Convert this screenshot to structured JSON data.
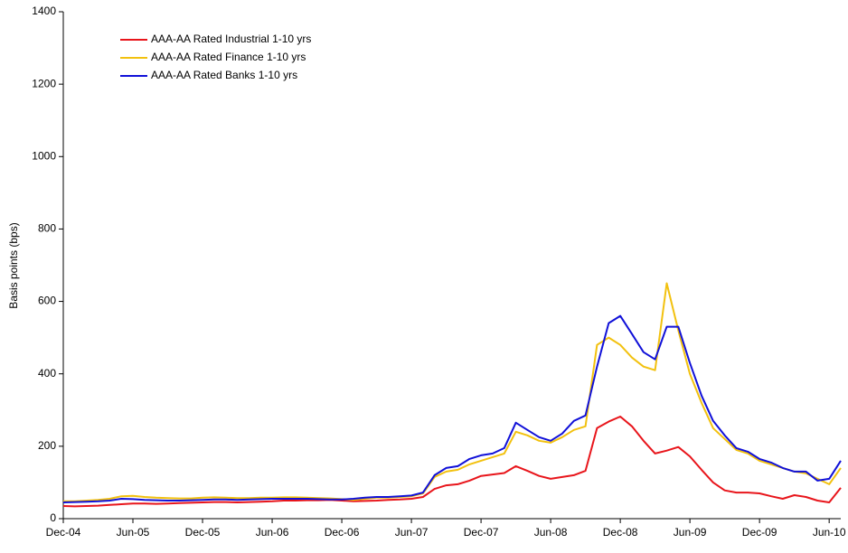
{
  "chart_data": {
    "type": "line",
    "y_label": "Basis points (bps)",
    "categories": [
      "Dec-04",
      null,
      null,
      null,
      null,
      null,
      "Jun-05",
      null,
      null,
      null,
      null,
      null,
      "Dec-05",
      null,
      null,
      null,
      null,
      null,
      "Jun-06",
      null,
      null,
      null,
      null,
      null,
      "Dec-06",
      null,
      null,
      null,
      null,
      null,
      "Jun-07",
      null,
      null,
      null,
      null,
      null,
      "Dec-07",
      null,
      null,
      null,
      null,
      null,
      "Jun-08",
      null,
      null,
      null,
      null,
      null,
      "Dec-08",
      null,
      null,
      null,
      null,
      null,
      "Jun-09",
      null,
      null,
      null,
      null,
      null,
      "Dec-09",
      null,
      null,
      null,
      null,
      null,
      "Jun-10",
      null
    ],
    "series": [
      {
        "name": "AAA-AA Rated Industrial 1-10 yrs",
        "color": "#e8151b",
        "values": [
          35,
          34,
          35,
          36,
          38,
          40,
          42,
          42,
          41,
          42,
          43,
          44,
          45,
          46,
          46,
          45,
          46,
          47,
          48,
          50,
          50,
          51,
          51,
          52,
          50,
          48,
          49,
          50,
          52,
          53,
          55,
          60,
          82,
          92,
          95,
          105,
          118,
          122,
          126,
          145,
          132,
          118,
          110,
          115,
          120,
          132,
          250,
          268,
          282,
          255,
          215,
          180,
          188,
          198,
          172,
          135,
          100,
          78,
          72,
          72,
          70,
          62,
          55,
          65,
          60,
          50,
          45,
          85
        ]
      },
      {
        "name": "AAA-AA Rated Finance 1-10 yrs",
        "color": "#f2c10f",
        "values": [
          48,
          48,
          50,
          52,
          55,
          62,
          63,
          60,
          58,
          57,
          56,
          56,
          58,
          59,
          58,
          57,
          57,
          58,
          58,
          59,
          59,
          58,
          57,
          56,
          54,
          52,
          55,
          58,
          58,
          60,
          62,
          70,
          115,
          130,
          135,
          150,
          160,
          170,
          180,
          240,
          230,
          215,
          210,
          225,
          245,
          255,
          480,
          500,
          480,
          445,
          420,
          410,
          650,
          520,
          400,
          320,
          250,
          220,
          190,
          180,
          160,
          150,
          140,
          130,
          125,
          110,
          95,
          140
        ]
      },
      {
        "name": "AAA-AA Rated Banks 1-10 yrs",
        "color": "#1010d8",
        "values": [
          45,
          46,
          47,
          48,
          50,
          55,
          54,
          52,
          51,
          50,
          50,
          51,
          52,
          53,
          53,
          52,
          53,
          54,
          55,
          55,
          55,
          55,
          54,
          53,
          53,
          55,
          58,
          60,
          60,
          62,
          64,
          72,
          120,
          140,
          145,
          165,
          175,
          180,
          195,
          265,
          245,
          225,
          215,
          235,
          270,
          285,
          420,
          540,
          560,
          510,
          460,
          440,
          530,
          530,
          430,
          340,
          270,
          230,
          195,
          185,
          165,
          155,
          140,
          130,
          130,
          105,
          110,
          160
        ]
      }
    ],
    "ylim": [
      0,
      1400
    ],
    "yticks": [
      0,
      200,
      400,
      600,
      800,
      1000,
      1200,
      1400
    ]
  }
}
